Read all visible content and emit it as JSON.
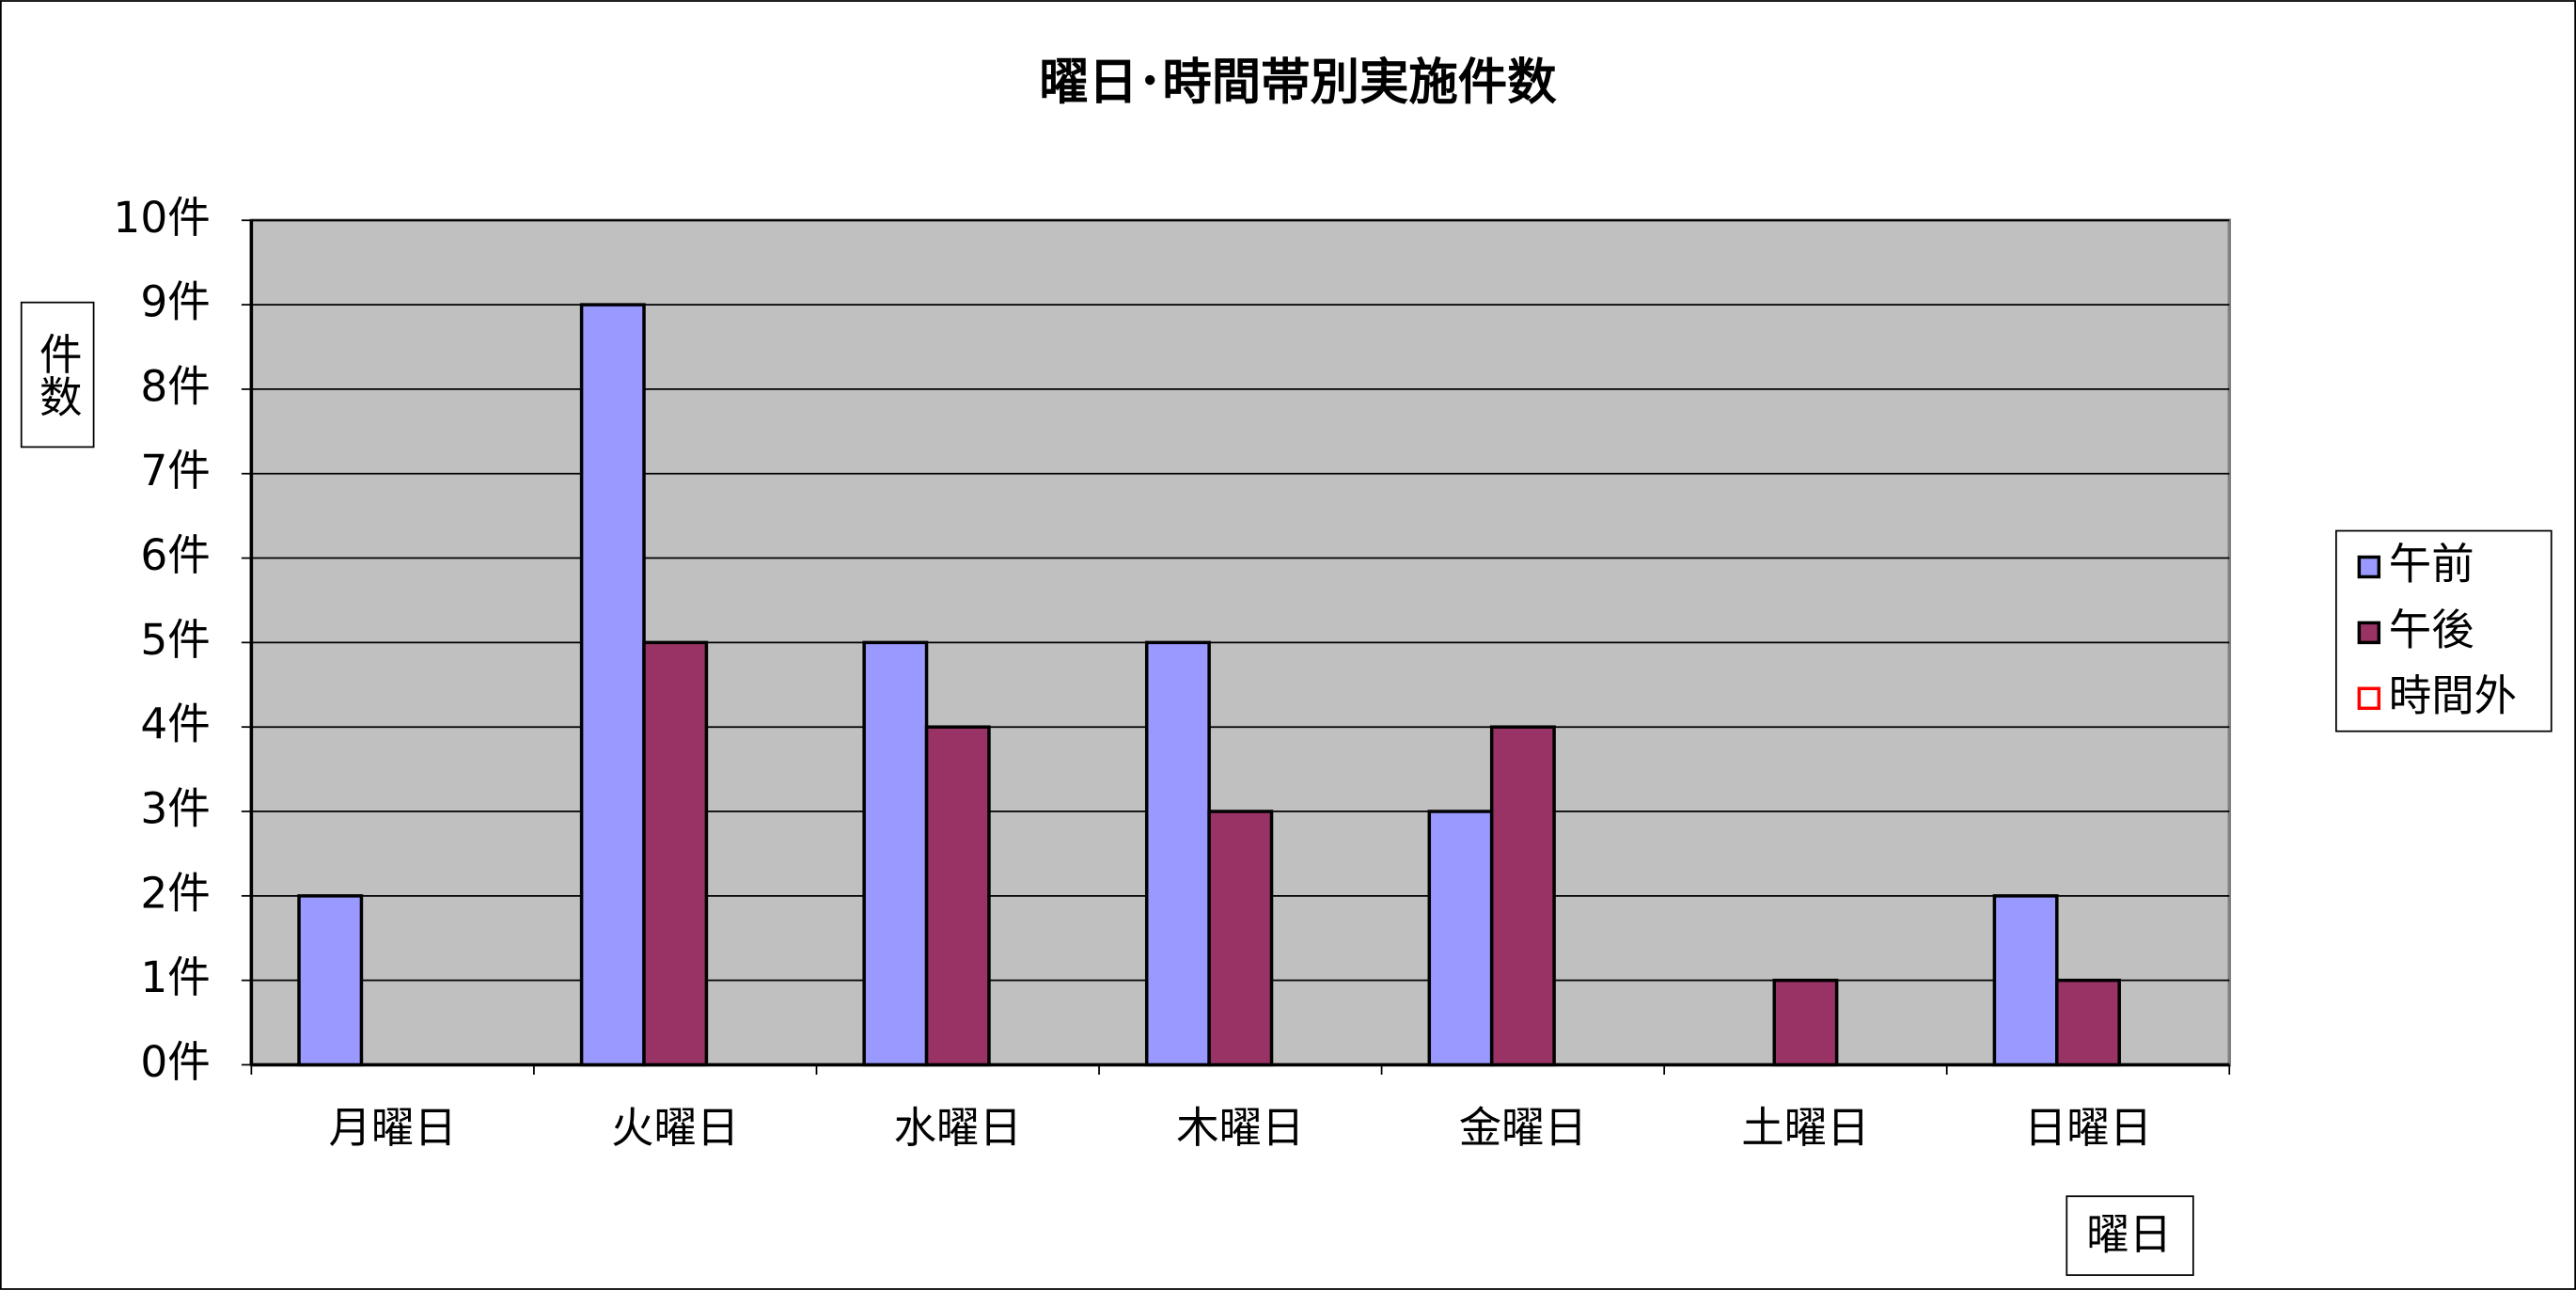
{
  "chart_data": {
    "type": "bar",
    "title": "曜日･時間帯別実施件数",
    "y_label": "件数",
    "x_label": "曜日",
    "categories": [
      "月曜日",
      "火曜日",
      "水曜日",
      "木曜日",
      "金曜日",
      "土曜日",
      "日曜日"
    ],
    "series": [
      {
        "name": "午前",
        "color": "#9999ff",
        "values": [
          2,
          9,
          5,
          5,
          3,
          0,
          2
        ]
      },
      {
        "name": "午後",
        "color": "#993366",
        "values": [
          0,
          5,
          4,
          3,
          4,
          1,
          1
        ]
      },
      {
        "name": "時間外",
        "color": "#ff0000",
        "values": [
          0,
          0,
          0,
          0,
          0,
          0,
          0
        ]
      }
    ],
    "ylim": [
      0,
      10
    ],
    "yticks": [
      {
        "value": 0,
        "label": "0件"
      },
      {
        "value": 1,
        "label": "1件"
      },
      {
        "value": 2,
        "label": "2件"
      },
      {
        "value": 3,
        "label": "3件"
      },
      {
        "value": 4,
        "label": "4件"
      },
      {
        "value": 5,
        "label": "5件"
      },
      {
        "value": 6,
        "label": "6件"
      },
      {
        "value": 7,
        "label": "7件"
      },
      {
        "value": 8,
        "label": "8件"
      },
      {
        "value": 9,
        "label": "9件"
      },
      {
        "value": 10,
        "label": "10件"
      }
    ],
    "grid": true,
    "legend": "right"
  }
}
